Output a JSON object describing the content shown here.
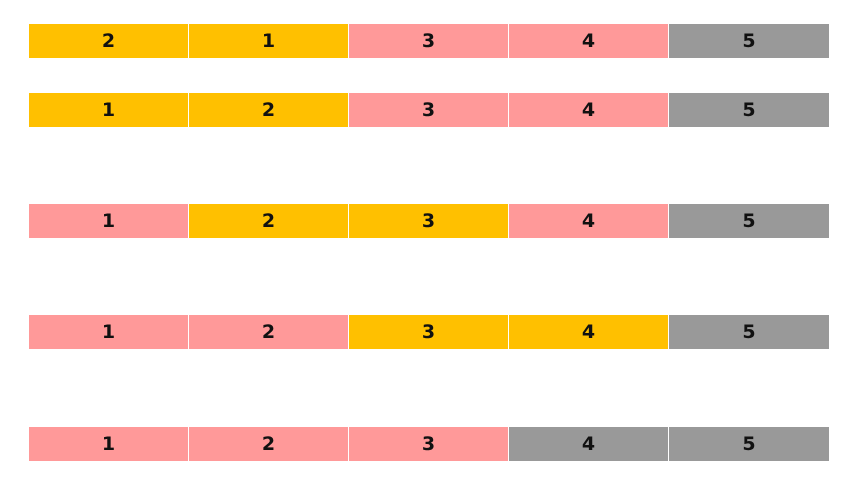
{
  "colors": {
    "yellow": "#FFC000",
    "pink": "#FF9999",
    "gray": "#999999"
  },
  "rows": [
    {
      "cells": [
        {
          "label": "2",
          "color": "yellow"
        },
        {
          "label": "1",
          "color": "yellow"
        },
        {
          "label": "3",
          "color": "pink"
        },
        {
          "label": "4",
          "color": "pink"
        },
        {
          "label": "5",
          "color": "gray"
        }
      ]
    },
    {
      "cells": [
        {
          "label": "1",
          "color": "yellow"
        },
        {
          "label": "2",
          "color": "yellow"
        },
        {
          "label": "3",
          "color": "pink"
        },
        {
          "label": "4",
          "color": "pink"
        },
        {
          "label": "5",
          "color": "gray"
        }
      ]
    },
    {
      "cells": [
        {
          "label": "1",
          "color": "pink"
        },
        {
          "label": "2",
          "color": "yellow"
        },
        {
          "label": "3",
          "color": "yellow"
        },
        {
          "label": "4",
          "color": "pink"
        },
        {
          "label": "5",
          "color": "gray"
        }
      ]
    },
    {
      "cells": [
        {
          "label": "1",
          "color": "pink"
        },
        {
          "label": "2",
          "color": "pink"
        },
        {
          "label": "3",
          "color": "yellow"
        },
        {
          "label": "4",
          "color": "yellow"
        },
        {
          "label": "5",
          "color": "gray"
        }
      ]
    },
    {
      "cells": [
        {
          "label": "1",
          "color": "pink"
        },
        {
          "label": "2",
          "color": "pink"
        },
        {
          "label": "3",
          "color": "pink"
        },
        {
          "label": "4",
          "color": "gray"
        },
        {
          "label": "5",
          "color": "gray"
        }
      ]
    }
  ]
}
